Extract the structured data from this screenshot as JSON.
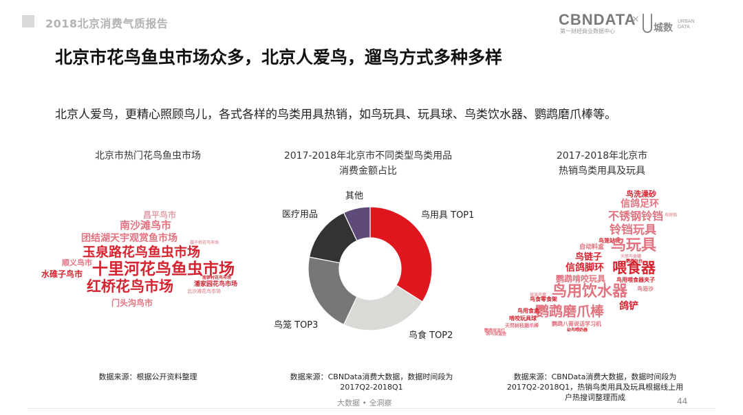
{
  "header": {
    "report_title": "2018北京消费气质报告",
    "brand": {
      "cbn": "CBNDATA",
      "cbn_sub": "第一财经商业数据中心",
      "x": "×",
      "ud_cn": "城数",
      "ud_en": "URBAN DATA"
    }
  },
  "main_title": "北京市花鸟鱼虫市场众多，北京人爱鸟，遛鸟方式多种多样",
  "subtitle": "北京人爱鸟，更精心照顾鸟儿，各式各样的鸟类用具热销，如鸟玩具、玩具球、鸟类饮水器、鹦鹉磨爪棒等。",
  "left_panel": {
    "title": "北京市热门花鸟鱼虫市场",
    "words": [
      {
        "text": "昌平鸟市",
        "color": "#e2a0a8"
      },
      {
        "text": "南沙滩鸟市",
        "color": "#e2737f"
      },
      {
        "text": "团结湖天宇观赏鱼市场",
        "color": "#e2737f"
      },
      {
        "text": "玉泉路花鸟鱼虫市场",
        "color": "#d5232f"
      },
      {
        "text": "十里河花鸟鱼虫市场",
        "color": "#d5232f"
      },
      {
        "text": "顺义鸟市",
        "color": "#e2737f"
      },
      {
        "text": "水碓子鸟市",
        "color": "#d5232f"
      },
      {
        "text": "红桥花鸟市场",
        "color": "#d5232f"
      },
      {
        "text": "门头沟鸟市",
        "color": "#e2737f"
      },
      {
        "text": "潘家园花鸟市场",
        "color": "#d5232f"
      },
      {
        "text": "北沙滩花鸟市场",
        "color": "#e2a0a8"
      },
      {
        "text": "南锣村花鸟市场",
        "color": "#d5232f"
      },
      {
        "text": "福子桥花鸟市场",
        "color": "#e2a0a8"
      }
    ],
    "note": "数据来源：根据公开资料整理"
  },
  "middle_panel": {
    "title_line1": "2017-2018年北京市不同类型鸟类用品",
    "title_line2": "消费金额占比",
    "note_line1": "数据来源：CBNData消费大数据，数据时间段为",
    "note_line2": "2017Q2-2018Q1"
  },
  "right_panel": {
    "title_line1": "2017-2018年北京市",
    "title_line2": "热销鸟类用具及玩具",
    "words": [
      {
        "text": "鸟洗澡砂",
        "color": "#d5232f"
      },
      {
        "text": "信鸽足环",
        "color": "#e2737f"
      },
      {
        "text": "不锈钢铃铛",
        "color": "#e2737f"
      },
      {
        "text": "鸟铃铛",
        "color": "#e2a0a8"
      },
      {
        "text": "铃铛玩具",
        "color": "#e2737f"
      },
      {
        "text": "鸟笼站杆",
        "color": "#d5232f"
      },
      {
        "text": "鸟玩具",
        "color": "#e2737f"
      },
      {
        "text": "自动料盒",
        "color": "#e2737f"
      },
      {
        "text": "鸟链子",
        "color": "#d5232f"
      },
      {
        "text": "天然鸟食罐",
        "color": "#e2a0a8"
      },
      {
        "text": "信鸽脚环",
        "color": "#d5232f"
      },
      {
        "text": "鹦鹉站台",
        "color": "#d5232f"
      },
      {
        "text": "喂食器",
        "color": "#d5232f"
      },
      {
        "text": "鹦鹉啃咬玩具",
        "color": "#e2737f"
      },
      {
        "text": "鸟用喂食器夹子",
        "color": "#d5232f"
      },
      {
        "text": "鸟用饮水器",
        "color": "#e2737f"
      },
      {
        "text": "鸟浴沙",
        "color": "#e2737f"
      },
      {
        "text": "鸟食零食架",
        "color": "#d5232f"
      },
      {
        "text": "保温鸟窝",
        "color": "#e2a0a8"
      },
      {
        "text": "鹦鹉磨爪棒",
        "color": "#e2737f"
      },
      {
        "text": "鸽铲",
        "color": "#d5232f"
      },
      {
        "text": "鸟用食盒",
        "color": "#d5232f"
      },
      {
        "text": "啃咬玩具球",
        "color": "#d5232f"
      },
      {
        "text": "天然树枝磨爪棒",
        "color": "#e2737f"
      },
      {
        "text": "鹦鹉八哥说话学习机",
        "color": "#e2737f"
      },
      {
        "text": "鹦鹉保温灯",
        "color": "#e2737f"
      },
      {
        "text": "鸽鸟保温垫",
        "color": "#e2737f"
      },
      {
        "text": "幼鸟喂奶器",
        "color": "#d5232f"
      }
    ],
    "note_line1": "数据来源：CBNData消费大数据，数据时间段为",
    "note_line2": "2017Q2-2018Q1，热销鸟类用具及玩具根据线上用",
    "note_line3": "户热搜词整理而成"
  },
  "footer": {
    "center": "大数据 • 全洞察",
    "page": "44"
  },
  "chart_data": {
    "type": "pie",
    "donut": true,
    "slices": [
      {
        "label": "鸟用具 TOP1",
        "value": 34,
        "color": "#e0161f"
      },
      {
        "label": "鸟食 TOP2",
        "value": 23,
        "color": "#d9d9d6"
      },
      {
        "label": "鸟笼 TOP3",
        "value": 21,
        "color": "#777777"
      },
      {
        "label": "医疗用品",
        "value": 15,
        "color": "#333333"
      },
      {
        "label": "其他",
        "value": 7,
        "color": "#5d4a78"
      }
    ]
  }
}
